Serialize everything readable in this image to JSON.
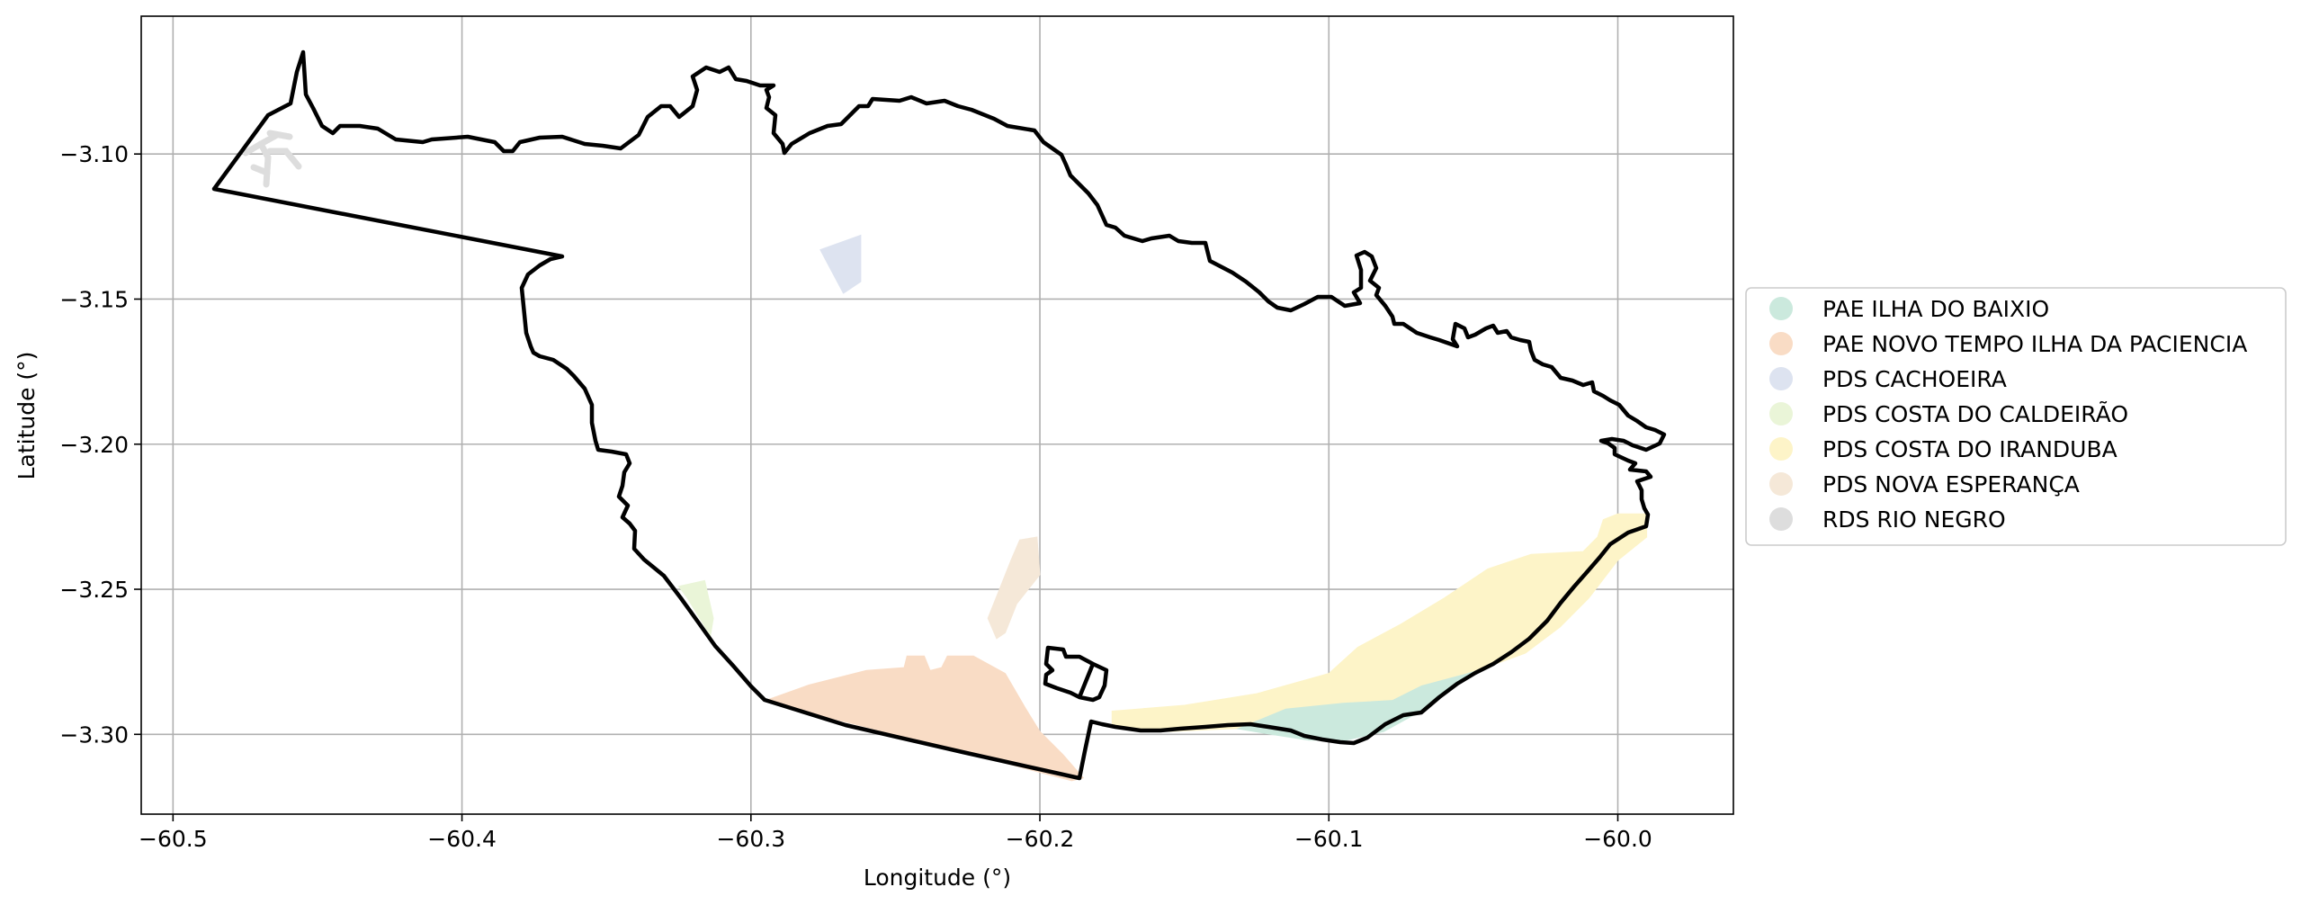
{
  "chart_data": {
    "type": "map",
    "xlabel": "Longitude (°)",
    "ylabel": "Latitude (°)",
    "xlim": [
      -60.511,
      -59.96
    ],
    "ylim": [
      -3.3275,
      -3.0525
    ],
    "xticks": [
      {
        "value": -60.5,
        "label": "−60.5"
      },
      {
        "value": -60.4,
        "label": "−60.4"
      },
      {
        "value": -60.3,
        "label": "−60.3"
      },
      {
        "value": -60.2,
        "label": "−60.2"
      },
      {
        "value": -60.1,
        "label": "−60.1"
      },
      {
        "value": -60.0,
        "label": "−60.0"
      }
    ],
    "yticks": [
      {
        "value": -3.1,
        "label": "−3.10"
      },
      {
        "value": -3.15,
        "label": "−3.15"
      },
      {
        "value": -3.2,
        "label": "−3.20"
      },
      {
        "value": -3.25,
        "label": "−3.25"
      },
      {
        "value": -3.3,
        "label": "−3.30"
      }
    ],
    "grid": true,
    "legend_position": "center-right outside",
    "boundary_color": "#000000",
    "series": [
      {
        "name": "PAE ILHA DO BAIXIO",
        "color": "#cbe9dd",
        "polygons": [
          [
            [
              -60.132,
              -3.298
            ],
            [
              -60.115,
              -3.291
            ],
            [
              -60.095,
              -3.289
            ],
            [
              -60.078,
              -3.288
            ],
            [
              -60.068,
              -3.283
            ],
            [
              -60.053,
              -3.279
            ],
            [
              -60.043,
              -3.276
            ],
            [
              -60.054,
              -3.281
            ],
            [
              -60.064,
              -3.288
            ],
            [
              -60.07,
              -3.293
            ],
            [
              -60.081,
              -3.299
            ],
            [
              -60.094,
              -3.302
            ],
            [
              -60.107,
              -3.302
            ],
            [
              -60.12,
              -3.3
            ]
          ]
        ]
      },
      {
        "name": "PAE NOVO TEMPO ILHA DA PACIENCIA",
        "color": "#f9dcc5",
        "polygons": [
          [
            [
              -60.294,
              -3.288
            ],
            [
              -60.28,
              -3.283
            ],
            [
              -60.26,
              -3.278
            ],
            [
              -60.247,
              -3.277
            ],
            [
              -60.246,
              -3.273
            ],
            [
              -60.24,
              -3.273
            ],
            [
              -60.238,
              -3.278
            ],
            [
              -60.234,
              -3.277
            ],
            [
              -60.232,
              -3.273
            ],
            [
              -60.223,
              -3.273
            ],
            [
              -60.212,
              -3.279
            ],
            [
              -60.205,
              -3.291
            ],
            [
              -60.2,
              -3.299
            ],
            [
              -60.192,
              -3.307
            ],
            [
              -60.185,
              -3.315
            ],
            [
              -60.189,
              -3.316
            ],
            [
              -60.242,
              -3.302
            ],
            [
              -60.294,
              -3.289
            ]
          ]
        ]
      },
      {
        "name": "PDS CACHOEIRA",
        "color": "#dde3f0",
        "polygons": [
          [
            [
              -60.276,
              -3.133
            ],
            [
              -60.262,
              -3.128
            ],
            [
              -60.262,
              -3.144
            ],
            [
              -60.268,
              -3.148
            ]
          ]
        ]
      },
      {
        "name": "PDS COSTA DO CALDEIRÃO",
        "color": "#eaf5d8",
        "polygons": [
          [
            [
              -60.325,
              -3.249
            ],
            [
              -60.316,
              -3.247
            ],
            [
              -60.313,
              -3.26
            ],
            [
              -60.314,
              -3.266
            ],
            [
              -60.322,
              -3.253
            ]
          ]
        ]
      },
      {
        "name": "PDS COSTA DO IRANDUBA",
        "color": "#fdf4c8",
        "polygons": [
          [
            [
              -60.175,
              -3.292
            ],
            [
              -60.15,
              -3.29
            ],
            [
              -60.125,
              -3.286
            ],
            [
              -60.1,
              -3.279
            ],
            [
              -60.09,
              -3.27
            ],
            [
              -60.075,
              -3.262
            ],
            [
              -60.06,
              -3.253
            ],
            [
              -60.045,
              -3.243
            ],
            [
              -60.03,
              -3.238
            ],
            [
              -60.012,
              -3.237
            ],
            [
              -60.007,
              -3.232
            ],
            [
              -60.005,
              -3.226
            ],
            [
              -60.0,
              -3.224
            ],
            [
              -59.99,
              -3.224
            ],
            [
              -59.99,
              -3.232
            ],
            [
              -60.0,
              -3.24
            ],
            [
              -60.01,
              -3.253
            ],
            [
              -60.02,
              -3.263
            ],
            [
              -60.032,
              -3.272
            ],
            [
              -60.043,
              -3.276
            ],
            [
              -60.053,
              -3.279
            ],
            [
              -60.068,
              -3.283
            ],
            [
              -60.078,
              -3.288
            ],
            [
              -60.095,
              -3.289
            ],
            [
              -60.115,
              -3.291
            ],
            [
              -60.132,
              -3.298
            ],
            [
              -60.155,
              -3.299
            ],
            [
              -60.168,
              -3.298
            ],
            [
              -60.175,
              -3.297
            ]
          ]
        ]
      },
      {
        "name": "PDS NOVA ESPERANÇA",
        "color": "#f5e8d8",
        "polygons": [
          [
            [
              -60.201,
              -3.232
            ],
            [
              -60.207,
              -3.233
            ],
            [
              -60.21,
              -3.24
            ],
            [
              -60.214,
              -3.25
            ],
            [
              -60.218,
              -3.26
            ],
            [
              -60.215,
              -3.267
            ],
            [
              -60.212,
              -3.265
            ],
            [
              -60.208,
              -3.255
            ],
            [
              -60.2,
              -3.245
            ]
          ]
        ]
      },
      {
        "name": "RDS RIO NEGRO",
        "color": "#dddddd",
        "polygons": []
      }
    ]
  }
}
